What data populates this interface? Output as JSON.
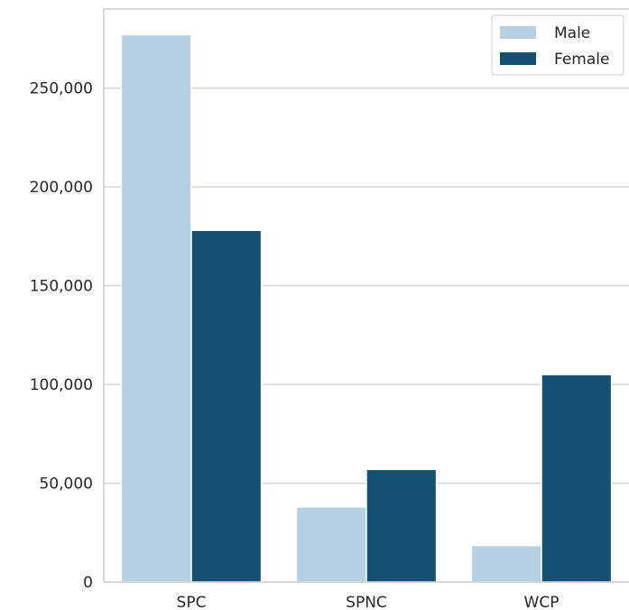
{
  "chart_data": {
    "type": "bar",
    "categories": [
      "SPC",
      "SPNC",
      "WCP"
    ],
    "series": [
      {
        "name": "Male",
        "values": [
          277000,
          38000,
          18500
        ],
        "color": "#b4d0e2"
      },
      {
        "name": "Female",
        "values": [
          178000,
          57000,
          105000
        ],
        "color": "#135072"
      }
    ],
    "ylim": [
      0,
      290000
    ],
    "yticks": [
      0,
      50000,
      100000,
      150000,
      200000,
      250000
    ],
    "ytick_labels": [
      "0",
      "50,000",
      "100,000",
      "150,000",
      "200,000",
      "250,000"
    ],
    "grid": "horizontal",
    "legend_position": "top-right",
    "colors": {
      "grid": "#d5d5d5",
      "axis": "#cccccc",
      "text": "#262626"
    }
  }
}
